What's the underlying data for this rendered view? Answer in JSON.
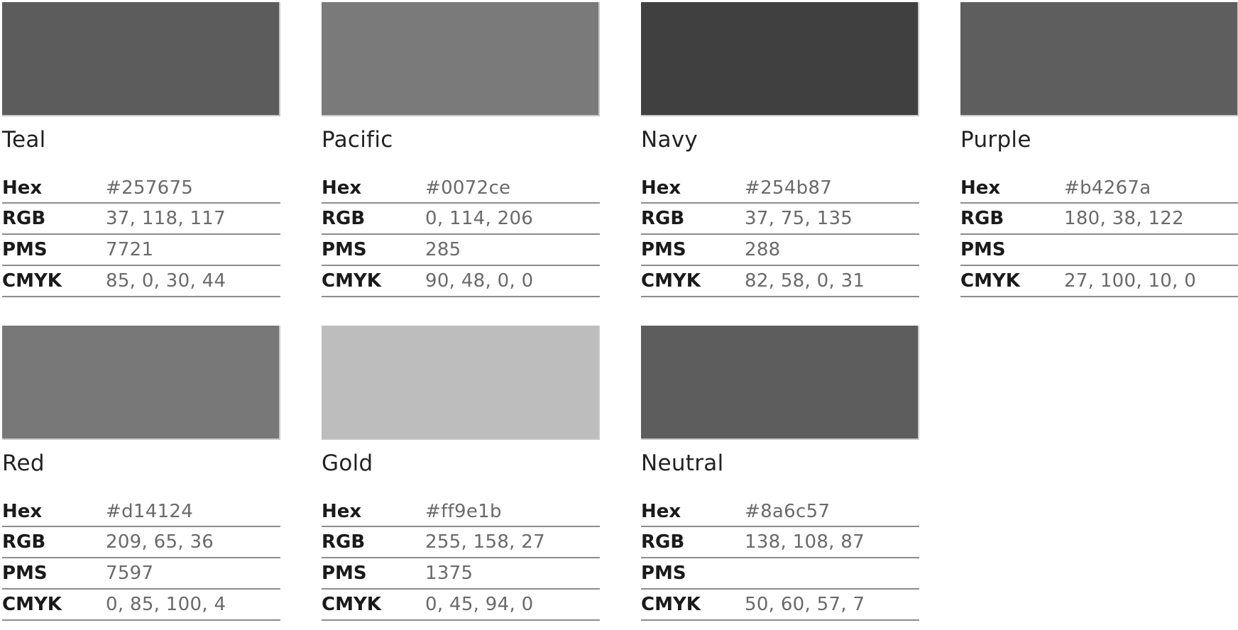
{
  "colors": [
    {
      "name": "Teal",
      "swatch": "#5c5c5c",
      "specs": [
        [
          "Hex",
          "#257675"
        ],
        [
          "RGB",
          "37, 118, 117"
        ],
        [
          "PMS",
          "7721"
        ],
        [
          "CMYK",
          "85, 0, 30, 44"
        ]
      ]
    },
    {
      "name": "Pacific",
      "swatch": "#7a7a7a",
      "specs": [
        [
          "Hex",
          "#0072ce"
        ],
        [
          "RGB",
          "0, 114, 206"
        ],
        [
          "PMS",
          "285"
        ],
        [
          "CMYK",
          "90, 48, 0, 0"
        ]
      ]
    },
    {
      "name": "Navy",
      "swatch": "#404040",
      "specs": [
        [
          "Hex",
          "#254b87"
        ],
        [
          "RGB",
          "37, 75, 135"
        ],
        [
          "PMS",
          "288"
        ],
        [
          "CMYK",
          "82, 58, 0, 31"
        ]
      ]
    },
    {
      "name": "Purple",
      "swatch": "#5e5e5e",
      "specs": [
        [
          "Hex",
          "#b4267a"
        ],
        [
          "RGB",
          "180, 38, 122"
        ],
        [
          "PMS",
          ""
        ],
        [
          "CMYK",
          "27, 100, 10, 0"
        ]
      ]
    },
    {
      "name": "Red",
      "swatch": "#787878",
      "specs": [
        [
          "Hex",
          "#d14124"
        ],
        [
          "RGB",
          "209, 65, 36"
        ],
        [
          "PMS",
          "7597"
        ],
        [
          "CMYK",
          "0, 85, 100, 4"
        ]
      ]
    },
    {
      "name": "Gold",
      "swatch": "#bdbdbd",
      "specs": [
        [
          "Hex",
          "#ff9e1b"
        ],
        [
          "RGB",
          "255, 158, 27"
        ],
        [
          "PMS",
          "1375"
        ],
        [
          "CMYK",
          "0, 45, 94, 0"
        ]
      ]
    },
    {
      "name": "Neutral",
      "swatch": "#5d5d5d",
      "specs": [
        [
          "Hex",
          "#8a6c57"
        ],
        [
          "RGB",
          "138, 108, 87"
        ],
        [
          "PMS",
          ""
        ],
        [
          "CMYK",
          "50, 60, 57, 7"
        ]
      ]
    }
  ]
}
